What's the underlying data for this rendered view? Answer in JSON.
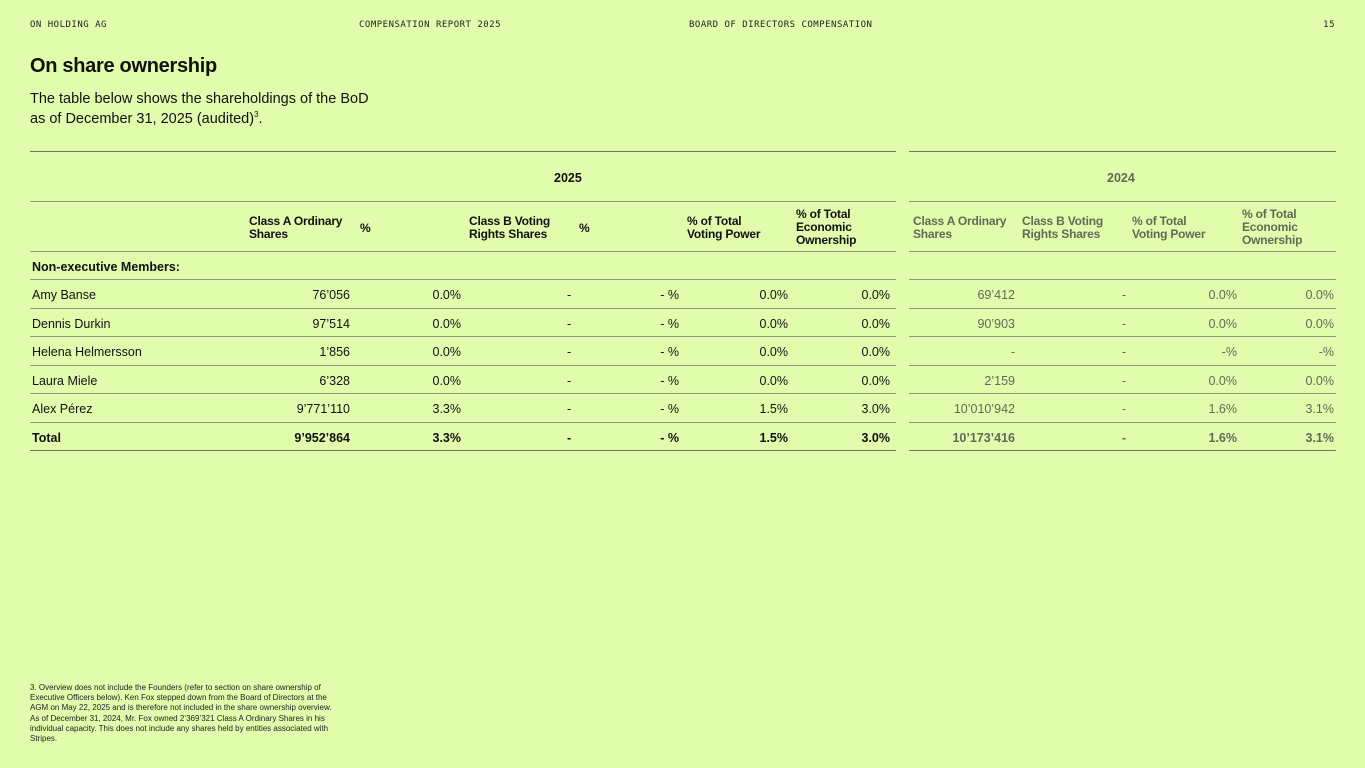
{
  "header": {
    "company": "ON HOLDING AG",
    "report": "COMPENSATION REPORT 2025",
    "section": "BOARD OF DIRECTORS COMPENSATION",
    "page": "15"
  },
  "title": "On share ownership",
  "intro": "The table below shows the shareholdings of the BoD as of December 31, 2025 (audited)",
  "intro_sup": "3",
  "intro_end": ".",
  "table2025": {
    "year": "2025",
    "headers": [
      "Class A Ordinary Shares",
      "%",
      "Class B Voting Rights Shares",
      "%",
      "% of Total Voting Power",
      "% of Total Economic Ownership"
    ],
    "group": "Non-executive Members:",
    "rows": [
      {
        "name": "Amy Banse",
        "v": [
          "76’056",
          "0.0%",
          "-",
          "- %",
          "0.0%",
          "0.0%"
        ]
      },
      {
        "name": "Dennis Durkin",
        "v": [
          "97’514",
          "0.0%",
          "-",
          "- %",
          "0.0%",
          "0.0%"
        ]
      },
      {
        "name": "Helena Helmersson",
        "v": [
          "1’856",
          "0.0%",
          "-",
          "- %",
          "0.0%",
          "0.0%"
        ]
      },
      {
        "name": "Laura Miele",
        "v": [
          "6’328",
          "0.0%",
          "-",
          "- %",
          "0.0%",
          "0.0%"
        ]
      },
      {
        "name": "Alex Pérez",
        "v": [
          "9’771’110",
          "3.3%",
          "-",
          "- %",
          "1.5%",
          "3.0%"
        ]
      },
      {
        "name": "Total",
        "v": [
          "9’952’864",
          "3.3%",
          "-",
          "- %",
          "1.5%",
          "3.0%"
        ]
      }
    ]
  },
  "table2024": {
    "year": "2024",
    "headers": [
      "Class A Ordinary Shares",
      "Class B Voting Rights Shares",
      "% of Total Voting Power",
      "% of Total Economic Ownership"
    ],
    "rows": [
      [
        "69’412",
        "-",
        "0.0%",
        "0.0%"
      ],
      [
        "90’903",
        "-",
        "0.0%",
        "0.0%"
      ],
      [
        "-",
        "-",
        "-%",
        "-%"
      ],
      [
        "2’159",
        "-",
        "0.0%",
        "0.0%"
      ],
      [
        "10’010’942",
        "-",
        "1.6%",
        "3.1%"
      ],
      [
        "10’173’416",
        "-",
        "1.6%",
        "3.1%"
      ]
    ]
  },
  "footnote": "3. Overview does not include the Founders (refer to section on share ownership of Executive Officers below). Ken Fox stepped down from the Board of Directors at the AGM on May 22, 2025 and is therefore not included in the share ownership overview. As of December 31, 2024, Mr. Fox owned 2’369’321 Class A Ordinary Shares in his individual capacity. This does not include any shares held by entities associated with Stripes."
}
